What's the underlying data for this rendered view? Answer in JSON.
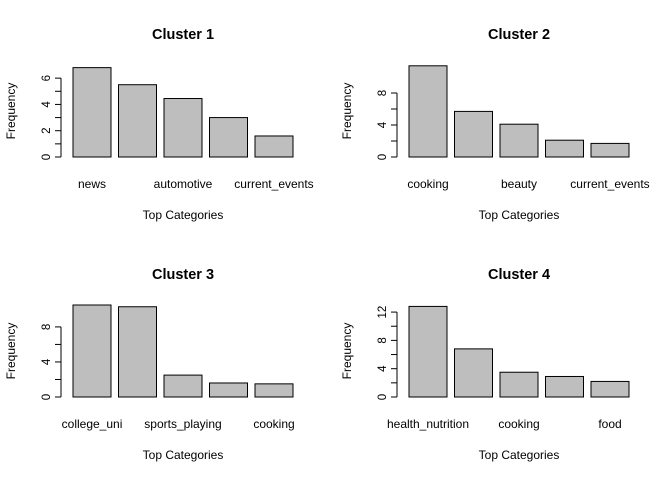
{
  "chart_data": [
    {
      "type": "bar",
      "title": "Cluster 1",
      "xlabel": "Top Categories",
      "ylabel": "Frequency",
      "ylim": [
        0,
        7
      ],
      "yticks": [
        0,
        2,
        4,
        6
      ],
      "categories": [
        "news",
        "",
        "automotive",
        "",
        "current_events"
      ],
      "values": [
        6.8,
        5.5,
        4.45,
        3.0,
        1.6
      ],
      "bar_color": "#bebebe",
      "grid": false
    },
    {
      "type": "bar",
      "title": "Cluster 2",
      "xlabel": "Top Categories",
      "ylabel": "Frequency",
      "ylim": [
        0,
        11.5
      ],
      "yticks": [
        0,
        4,
        8
      ],
      "categories": [
        "cooking",
        "",
        "beauty",
        "",
        "current_events"
      ],
      "values": [
        11.4,
        5.7,
        4.1,
        2.1,
        1.7
      ],
      "bar_color": "#bebebe",
      "grid": false
    },
    {
      "type": "bar",
      "title": "Cluster 3",
      "xlabel": "Top Categories",
      "ylabel": "Frequency",
      "ylim": [
        0,
        10.5
      ],
      "yticks": [
        0,
        4,
        8
      ],
      "categories": [
        "college_uni",
        "",
        "sports_playing",
        "",
        "cooking"
      ],
      "values": [
        10.5,
        10.3,
        2.5,
        1.6,
        1.5
      ],
      "bar_color": "#bebebe",
      "grid": false
    },
    {
      "type": "bar",
      "title": "Cluster 4",
      "xlabel": "Top Categories",
      "ylabel": "Frequency",
      "ylim": [
        0,
        13
      ],
      "yticks": [
        0,
        4,
        8,
        12
      ],
      "categories": [
        "health_nutrition",
        "",
        "cooking",
        "",
        "food"
      ],
      "values": [
        12.8,
        6.8,
        3.5,
        2.9,
        2.2
      ],
      "bar_color": "#bebebe",
      "grid": false
    }
  ]
}
